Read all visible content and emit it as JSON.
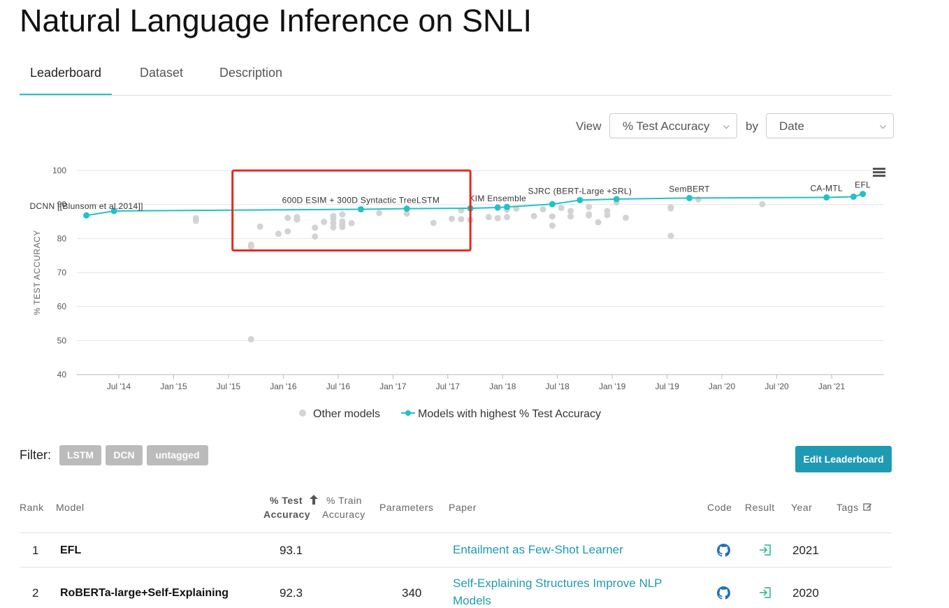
{
  "page": {
    "title": "Natural Language Inference on SNLI"
  },
  "tabs": [
    {
      "label": "Leaderboard",
      "active": true
    },
    {
      "label": "Dataset",
      "active": false
    },
    {
      "label": "Description",
      "active": false
    }
  ],
  "view_controls": {
    "view_label": "View",
    "metric_selected": "% Test Accuracy",
    "by_label": "by",
    "axis_selected": "Date"
  },
  "chart_data": {
    "type": "scatter",
    "ylabel": "% TEST ACCURACY",
    "ylim": [
      40,
      100
    ],
    "y_ticks": [
      40,
      50,
      60,
      70,
      80,
      90,
      100
    ],
    "x_tick_labels": [
      "Jul '14",
      "Jan '15",
      "Jul '15",
      "Jan '16",
      "Jul '16",
      "Jan '17",
      "Jul '17",
      "Jan '18",
      "Jul '18",
      "Jan '19",
      "Jul '19",
      "Jan '20",
      "Jul '20",
      "Jan '21"
    ],
    "grid": true,
    "legend_position": "bottom",
    "legend": {
      "other_label": "Other models",
      "best_label": "Models with highest % Test Accuracy"
    },
    "colors": {
      "best_line": "#21c1c8",
      "other_points": "#d3d3d3",
      "highlight_box": "#e5281b"
    },
    "series": [
      {
        "name": "Models with highest % Test Accuracy",
        "points": [
          {
            "x": "2014-03",
            "y": 86.8
          },
          {
            "x": "2014-06",
            "y": 88.1
          },
          {
            "x": "2016-09",
            "y": 88.6
          },
          {
            "x": "2017-02",
            "y": 88.8
          },
          {
            "x": "2017-09",
            "y": 88.9
          },
          {
            "x": "2017-12",
            "y": 89.1
          },
          {
            "x": "2018-01",
            "y": 89.3
          },
          {
            "x": "2018-06",
            "y": 90.1
          },
          {
            "x": "2018-09",
            "y": 91.3
          },
          {
            "x": "2019-01",
            "y": 91.6
          },
          {
            "x": "2019-09",
            "y": 91.9
          },
          {
            "x": "2020-12",
            "y": 92.1
          },
          {
            "x": "2021-03",
            "y": 92.3
          },
          {
            "x": "2021-04",
            "y": 93.1
          }
        ]
      },
      {
        "name": "Other models",
        "points": [
          {
            "x": "2015-03",
            "y": 86.0
          },
          {
            "x": "2015-03",
            "y": 85.2
          },
          {
            "x": "2015-09",
            "y": 77.6
          },
          {
            "x": "2015-09",
            "y": 78.2
          },
          {
            "x": "2015-09",
            "y": 50.4
          },
          {
            "x": "2015-10",
            "y": 83.5
          },
          {
            "x": "2015-12",
            "y": 81.4
          },
          {
            "x": "2016-01",
            "y": 82.1
          },
          {
            "x": "2016-01",
            "y": 86.1
          },
          {
            "x": "2016-02",
            "y": 85.6
          },
          {
            "x": "2016-02",
            "y": 86.3
          },
          {
            "x": "2016-04",
            "y": 80.6
          },
          {
            "x": "2016-04",
            "y": 83.2
          },
          {
            "x": "2016-05",
            "y": 84.9
          },
          {
            "x": "2016-06",
            "y": 83.3
          },
          {
            "x": "2016-06",
            "y": 84.6
          },
          {
            "x": "2016-06",
            "y": 86.6
          },
          {
            "x": "2016-06",
            "y": 85.9
          },
          {
            "x": "2016-07",
            "y": 87.1
          },
          {
            "x": "2016-07",
            "y": 83.4
          },
          {
            "x": "2016-07",
            "y": 84.1
          },
          {
            "x": "2016-07",
            "y": 85.0
          },
          {
            "x": "2016-08",
            "y": 84.5
          },
          {
            "x": "2016-11",
            "y": 87.5
          },
          {
            "x": "2017-02",
            "y": 87.3
          },
          {
            "x": "2017-05",
            "y": 84.6
          },
          {
            "x": "2017-07",
            "y": 85.8
          },
          {
            "x": "2017-08",
            "y": 85.7
          },
          {
            "x": "2017-08",
            "y": 88.3
          },
          {
            "x": "2017-09",
            "y": 85.5
          },
          {
            "x": "2017-11",
            "y": 86.3
          },
          {
            "x": "2017-12",
            "y": 86.0
          },
          {
            "x": "2018-01",
            "y": 88.5
          },
          {
            "x": "2018-01",
            "y": 86.3
          },
          {
            "x": "2018-02",
            "y": 88.8
          },
          {
            "x": "2018-04",
            "y": 86.6
          },
          {
            "x": "2018-05",
            "y": 88.6
          },
          {
            "x": "2018-06",
            "y": 83.8
          },
          {
            "x": "2018-06",
            "y": 86.5
          },
          {
            "x": "2018-07",
            "y": 89.0
          },
          {
            "x": "2018-08",
            "y": 88.1
          },
          {
            "x": "2018-08",
            "y": 86.5
          },
          {
            "x": "2018-10",
            "y": 87.1
          },
          {
            "x": "2018-10",
            "y": 86.8
          },
          {
            "x": "2018-10",
            "y": 89.3
          },
          {
            "x": "2018-11",
            "y": 84.8
          },
          {
            "x": "2018-12",
            "y": 88.1
          },
          {
            "x": "2018-12",
            "y": 86.9
          },
          {
            "x": "2019-01",
            "y": 90.6
          },
          {
            "x": "2019-02",
            "y": 86.1
          },
          {
            "x": "2019-07",
            "y": 89.2
          },
          {
            "x": "2019-07",
            "y": 88.9
          },
          {
            "x": "2019-07",
            "y": 80.8
          },
          {
            "x": "2019-10",
            "y": 91.5
          },
          {
            "x": "2020-05",
            "y": 90.1
          }
        ]
      }
    ],
    "annotations": [
      {
        "text": "DCNN [[Blunsom et al.2014]]",
        "x": "2014-03",
        "y": 86.8
      },
      {
        "text": "600D ESIM + 300D Syntactic TreeLSTM",
        "x": "2016-09",
        "y": 88.6
      },
      {
        "text": "KIM Ensemble",
        "x": "2017-12",
        "y": 89.1
      },
      {
        "text": "SJRC (BERT-Large +SRL)",
        "x": "2018-09",
        "y": 91.3
      },
      {
        "text": "SemBERT",
        "x": "2019-09",
        "y": 91.9
      },
      {
        "text": "CA-MTL",
        "x": "2020-12",
        "y": 92.1
      },
      {
        "text": "EFL",
        "x": "2021-04",
        "y": 93.1
      }
    ],
    "highlight_box": {
      "x_range": [
        "2015-07",
        "2017-09"
      ],
      "y_range": [
        76.5,
        100
      ]
    }
  },
  "filter": {
    "label": "Filter:",
    "tags": [
      "LSTM",
      "DCN",
      "untagged"
    ]
  },
  "edit_button": {
    "label": "Edit Leaderboard"
  },
  "table": {
    "headers": {
      "rank": "Rank",
      "model": "Model",
      "test_accuracy_line1": "% Test",
      "test_accuracy_line2": "Accuracy",
      "train_accuracy_line1": "% Train",
      "train_accuracy_line2": "Accuracy",
      "parameters": "Parameters",
      "paper": "Paper",
      "code": "Code",
      "result": "Result",
      "year": "Year",
      "tags": "Tags"
    },
    "rows": [
      {
        "rank": "1",
        "model": "EFL",
        "test_accuracy": "93.1",
        "train_accuracy": "",
        "parameters": "",
        "paper_line1": "Entailment as Few-Shot Learner",
        "paper_line2": "",
        "year": "2021"
      },
      {
        "rank": "2",
        "model": "RoBERTa-large+Self-Explaining",
        "test_accuracy": "92.3",
        "train_accuracy": "",
        "parameters": "340",
        "paper_line1": "Self-Explaining Structures Improve NLP",
        "paper_line2": "Models",
        "year": "2020"
      }
    ]
  }
}
